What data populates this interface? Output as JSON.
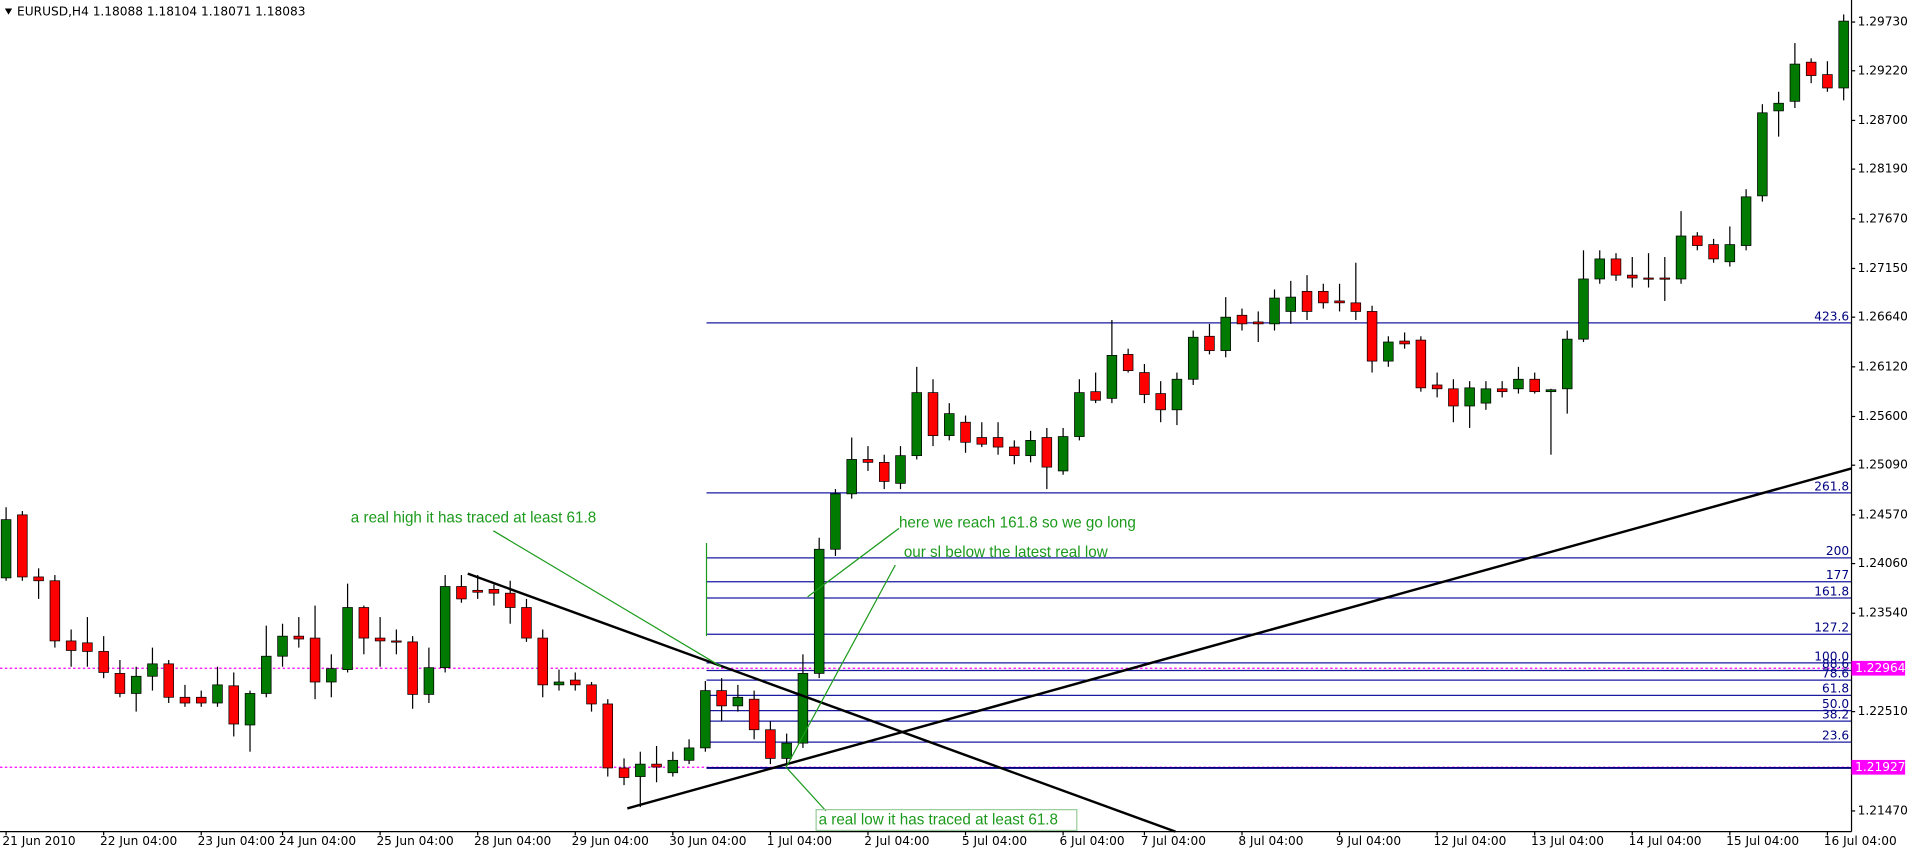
{
  "chart_data": {
    "type": "candlestick",
    "title": "EURUSD,H4  1.18088 1.18104 1.18071 1.18083",
    "up_color": "#007a00",
    "down_color": "#ff0000",
    "categories": [
      "21 Jun 2010",
      null,
      null,
      null,
      null,
      null,
      "22 Jun 04:00",
      null,
      null,
      null,
      null,
      null,
      "23 Jun 04:00",
      null,
      null,
      null,
      null,
      "24 Jun 04:00",
      null,
      null,
      null,
      null,
      null,
      "25 Jun 04:00",
      null,
      null,
      null,
      null,
      null,
      "28 Jun 04:00",
      null,
      null,
      null,
      null,
      null,
      "29 Jun 04:00",
      null,
      null,
      null,
      null,
      null,
      "30 Jun 04:00",
      null,
      null,
      null,
      null,
      null,
      "1 Jul 04:00",
      null,
      null,
      null,
      null,
      null,
      "2 Jul 04:00",
      null,
      null,
      null,
      null,
      null,
      "5 Jul 04:00",
      null,
      null,
      null,
      null,
      null,
      "6 Jul 04:00",
      null,
      null,
      null,
      null,
      "7 Jul 04:00",
      null,
      null,
      null,
      null,
      null,
      "8 Jul 04:00",
      null,
      null,
      null,
      null,
      null,
      "9 Jul 04:00",
      null,
      null,
      null,
      null,
      null,
      "12 Jul 04:00",
      null,
      null,
      null,
      null,
      null,
      "13 Jul 04:00",
      null,
      null,
      null,
      null,
      null,
      "14 Jul 04:00",
      null,
      null,
      null,
      null,
      null,
      "15 Jul 04:00",
      null,
      null,
      null,
      null,
      null,
      "16 Jul 04:00",
      null
    ],
    "open": [
      1.2391,
      1.2457,
      1.2392,
      1.2388,
      1.2325,
      1.2323,
      1.2314,
      1.2291,
      1.227,
      1.2288,
      1.2301,
      1.2266,
      1.2266,
      1.226,
      1.2278,
      1.2237,
      1.227,
      1.2309,
      1.233,
      1.2328,
      1.2282,
      1.2295,
      1.236,
      1.2328,
      1.2325,
      1.2324,
      1.2269,
      1.2297,
      1.2382,
      1.2378,
      1.2379,
      1.2375,
      1.236,
      1.2328,
      1.2279,
      1.2284,
      1.2279,
      1.2259,
      1.2192,
      1.2183,
      1.2196,
      1.2187,
      1.22,
      1.2213,
      1.2273,
      1.2257,
      1.2264,
      1.2232,
      1.2202,
      1.2218,
      1.2291,
      1.2421,
      1.2479,
      1.2515,
      1.2512,
      1.249,
      1.2519,
      1.2585,
      1.254,
      1.2554,
      1.2538,
      1.2538,
      1.2528,
      1.2519,
      1.2538,
      1.2503,
      1.2539,
      1.2586,
      1.2579,
      1.2625,
      1.2606,
      1.2584,
      1.2567,
      1.2599,
      1.2644,
      1.2629,
      1.2666,
      1.2659,
      1.2657,
      1.267,
      1.2691,
      1.2691,
      1.2681,
      1.2679,
      1.267,
      1.2618,
      1.2639,
      1.264,
      1.2593,
      1.2589,
      1.2571,
      1.2574,
      1.2589,
      1.2589,
      1.2599,
      1.2586,
      1.2589,
      1.2641,
      1.2704,
      1.2725,
      1.2708,
      1.2705,
      1.2705,
      1.2704,
      1.2749,
      1.274,
      1.2722,
      1.2739,
      1.2791,
      1.288,
      1.289,
      1.2931,
      1.2918,
      1.2904
    ],
    "high": [
      1.2465,
      1.2461,
      1.2401,
      1.2394,
      1.2337,
      1.235,
      1.233,
      1.2305,
      1.2298,
      1.2318,
      1.2305,
      1.2279,
      1.2273,
      1.2298,
      1.2292,
      1.2273,
      1.2341,
      1.2343,
      1.235,
      1.2362,
      1.2311,
      1.2385,
      1.2362,
      1.235,
      1.2337,
      1.233,
      1.2318,
      1.2394,
      1.2394,
      1.2394,
      1.2384,
      1.2388,
      1.2369,
      1.2337,
      1.2295,
      1.2292,
      1.2282,
      1.2264,
      1.2202,
      1.2209,
      1.2215,
      1.2209,
      1.2222,
      1.2283,
      1.2286,
      1.2279,
      1.2273,
      1.2241,
      1.2228,
      1.2311,
      1.2433,
      1.2484,
      1.2538,
      1.2529,
      1.252,
      1.2529,
      1.2612,
      1.2599,
      1.2574,
      1.2561,
      1.2554,
      1.2554,
      1.2535,
      1.2545,
      1.2548,
      1.2548,
      1.2599,
      1.2606,
      1.2661,
      1.2631,
      1.2615,
      1.2597,
      1.2606,
      1.265,
      1.2657,
      1.2685,
      1.2673,
      1.267,
      1.2693,
      1.2702,
      1.2708,
      1.2699,
      1.2699,
      1.2721,
      1.2676,
      1.2644,
      1.2648,
      1.2644,
      1.2606,
      1.2599,
      1.2597,
      1.2597,
      1.2597,
      1.2612,
      1.2606,
      1.2589,
      1.265,
      1.2734,
      1.2734,
      1.2731,
      1.2727,
      1.2731,
      1.2727,
      1.2775,
      1.2753,
      1.2746,
      1.2759,
      1.2798,
      1.2887,
      1.29,
      1.2951,
      1.2935,
      1.2932,
      1.2981
    ],
    "low": [
      1.2388,
      1.2388,
      1.2369,
      1.2318,
      1.2298,
      1.2298,
      1.2286,
      1.2266,
      1.2251,
      1.2273,
      1.226,
      1.2256,
      1.2256,
      1.2256,
      1.2225,
      1.2209,
      1.2266,
      1.2298,
      1.2318,
      1.2264,
      1.2266,
      1.2292,
      1.2311,
      1.2298,
      1.2311,
      1.2254,
      1.226,
      1.2292,
      1.2365,
      1.2369,
      1.2362,
      1.2343,
      1.2324,
      1.2266,
      1.2273,
      1.2273,
      1.2251,
      1.2183,
      1.2174,
      1.2151,
      1.2177,
      1.2183,
      1.2196,
      1.2209,
      1.2241,
      1.2251,
      1.2222,
      1.2196,
      1.2196,
      1.2213,
      1.2286,
      1.2414,
      1.2474,
      1.2503,
      1.2484,
      1.2484,
      1.2515,
      1.2529,
      1.2535,
      1.2522,
      1.2528,
      1.252,
      1.251,
      1.2512,
      1.2484,
      1.2499,
      1.2535,
      1.2574,
      1.2574,
      1.2606,
      1.2574,
      1.2554,
      1.2551,
      1.2593,
      1.2625,
      1.2622,
      1.265,
      1.2638,
      1.265,
      1.2657,
      1.2661,
      1.2673,
      1.267,
      1.2661,
      1.2606,
      1.2612,
      1.2631,
      1.2586,
      1.258,
      1.2554,
      1.2548,
      1.2567,
      1.258,
      1.2584,
      1.2584,
      1.252,
      1.2563,
      1.2638,
      1.2699,
      1.2702,
      1.2695,
      1.2695,
      1.2681,
      1.2699,
      1.2734,
      1.2721,
      1.2717,
      1.2734,
      1.2785,
      1.2853,
      1.2883,
      1.2909,
      1.29,
      1.2891
    ],
    "close": [
      1.2452,
      1.2392,
      1.2388,
      1.2325,
      1.2315,
      1.2314,
      1.2292,
      1.227,
      1.2288,
      1.2301,
      1.2266,
      1.226,
      1.226,
      1.2279,
      1.2238,
      1.227,
      1.2309,
      1.233,
      1.2327,
      1.2282,
      1.2296,
      1.236,
      1.2328,
      1.2325,
      1.2324,
      1.2269,
      1.2297,
      1.2382,
      1.2369,
      1.2376,
      1.2375,
      1.236,
      1.2328,
      1.2279,
      1.2282,
      1.2279,
      1.2259,
      1.2192,
      1.2182,
      1.2196,
      1.2193,
      1.22,
      1.2213,
      1.2273,
      1.2257,
      1.2266,
      1.2232,
      1.2202,
      1.2218,
      1.2291,
      1.2421,
      1.2479,
      1.2515,
      1.2512,
      1.2492,
      1.2519,
      1.2585,
      1.254,
      1.2563,
      1.2533,
      1.2531,
      1.2528,
      1.2519,
      1.2535,
      1.2507,
      1.2539,
      1.2585,
      1.2577,
      1.2624,
      1.2608,
      1.2583,
      1.2567,
      1.2599,
      1.2643,
      1.2629,
      1.2664,
      1.2657,
      1.2657,
      1.2684,
      1.2685,
      1.267,
      1.2679,
      1.2679,
      1.267,
      1.2618,
      1.2638,
      1.2636,
      1.259,
      1.2589,
      1.2571,
      1.259,
      1.2589,
      1.2586,
      1.2599,
      1.2586,
      1.2588,
      1.2641,
      1.2704,
      1.2725,
      1.2708,
      1.2705,
      1.2704,
      1.2704,
      1.2749,
      1.2739,
      1.2725,
      1.274,
      1.279,
      1.2878,
      1.2888,
      1.2929,
      1.2917,
      1.2904,
      1.2974
    ],
    "ylim": [
      1.21253,
      1.29961
    ],
    "yticks": [
      {
        "value": 1.2973,
        "label": "1.29730"
      },
      {
        "value": 1.2922,
        "label": "1.29220"
      },
      {
        "value": 1.287,
        "label": "1.28700"
      },
      {
        "value": 1.2819,
        "label": "1.28190"
      },
      {
        "value": 1.2767,
        "label": "1.27670"
      },
      {
        "value": 1.2715,
        "label": "1.27150"
      },
      {
        "value": 1.2664,
        "label": "1.26640"
      },
      {
        "value": 1.2612,
        "label": "1.26120"
      },
      {
        "value": 1.256,
        "label": "1.25600"
      },
      {
        "value": 1.2509,
        "label": "1.25090"
      },
      {
        "value": 1.2457,
        "label": "1.24570"
      },
      {
        "value": 1.2406,
        "label": "1.24060"
      },
      {
        "value": 1.2354,
        "label": "1.23540"
      },
      {
        "value": 1.2251,
        "label": "1.22510"
      },
      {
        "value": 1.2147,
        "label": "1.21470"
      }
    ],
    "fib_levels": [
      {
        "value": 1.2658,
        "label": "423.6"
      },
      {
        "value": 1.248,
        "label": "261.8"
      },
      {
        "value": 1.2412,
        "label": "200"
      },
      {
        "value": 1.2387,
        "label": "177"
      },
      {
        "value": 1.237,
        "label": "161.8"
      },
      {
        "value": 1.2332,
        "label": "127.2"
      },
      {
        "value": 1.2302,
        "label": "100.0"
      },
      {
        "value": 1.2294,
        "label": "88.6"
      },
      {
        "value": 1.2284,
        "label": "78.6"
      },
      {
        "value": 1.2268,
        "label": "61.8"
      },
      {
        "value": 1.2252,
        "label": "50.0"
      },
      {
        "value": 1.2241,
        "label": "38.2"
      },
      {
        "value": 1.2219,
        "label": "23.6"
      }
    ],
    "fib_base": 1.2192,
    "price_lines": [
      {
        "value": 1.22964,
        "label": "1.22964"
      },
      {
        "value": 1.21927,
        "label": "1.21927"
      }
    ],
    "annotations": [
      "a real high it has traced at least 61.8",
      "here we reach 161.8 so we go long",
      "our sl below the latest real low",
      "a real low it has traced at least 61.8"
    ]
  }
}
